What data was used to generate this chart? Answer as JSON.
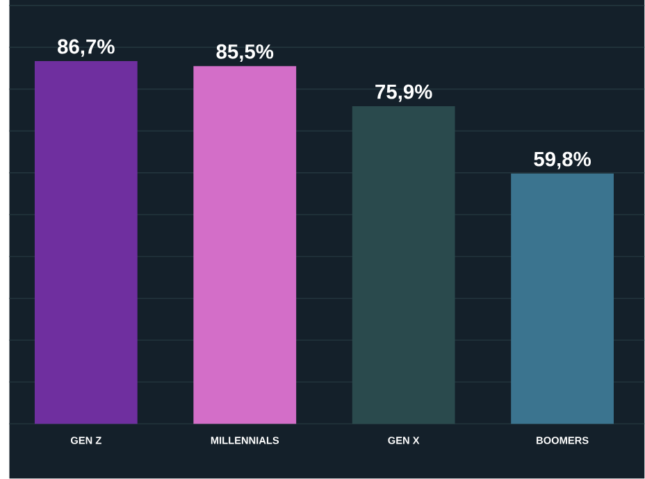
{
  "chart_data": {
    "type": "bar",
    "categories": [
      "GEN Z",
      "MILLENNIALS",
      "GEN X",
      "BOOMERS"
    ],
    "values": [
      86.7,
      85.5,
      75.9,
      59.8
    ],
    "colors": [
      "#6f2f9f",
      "#d36ec8",
      "#2a4a4d",
      "#3b748f"
    ],
    "value_labels": [
      "86,7%",
      "85,5%",
      "75,9%",
      "59,8%"
    ],
    "ylim": [
      0,
      100
    ],
    "yticks": [
      {
        "value": 0,
        "label": null
      },
      {
        "value": 10,
        "label": null
      },
      {
        "value": 20,
        "label": null
      },
      {
        "value": 30,
        "label": null
      },
      {
        "value": 40,
        "label": null
      },
      {
        "value": 50,
        "label": null
      },
      {
        "value": 60,
        "label": null
      },
      {
        "value": 70,
        "label": null
      },
      {
        "value": 80,
        "label": null
      },
      {
        "value": 90,
        "label": null
      },
      {
        "value": 100,
        "label": null
      }
    ],
    "grid": "y",
    "tick_labels": "x"
  }
}
